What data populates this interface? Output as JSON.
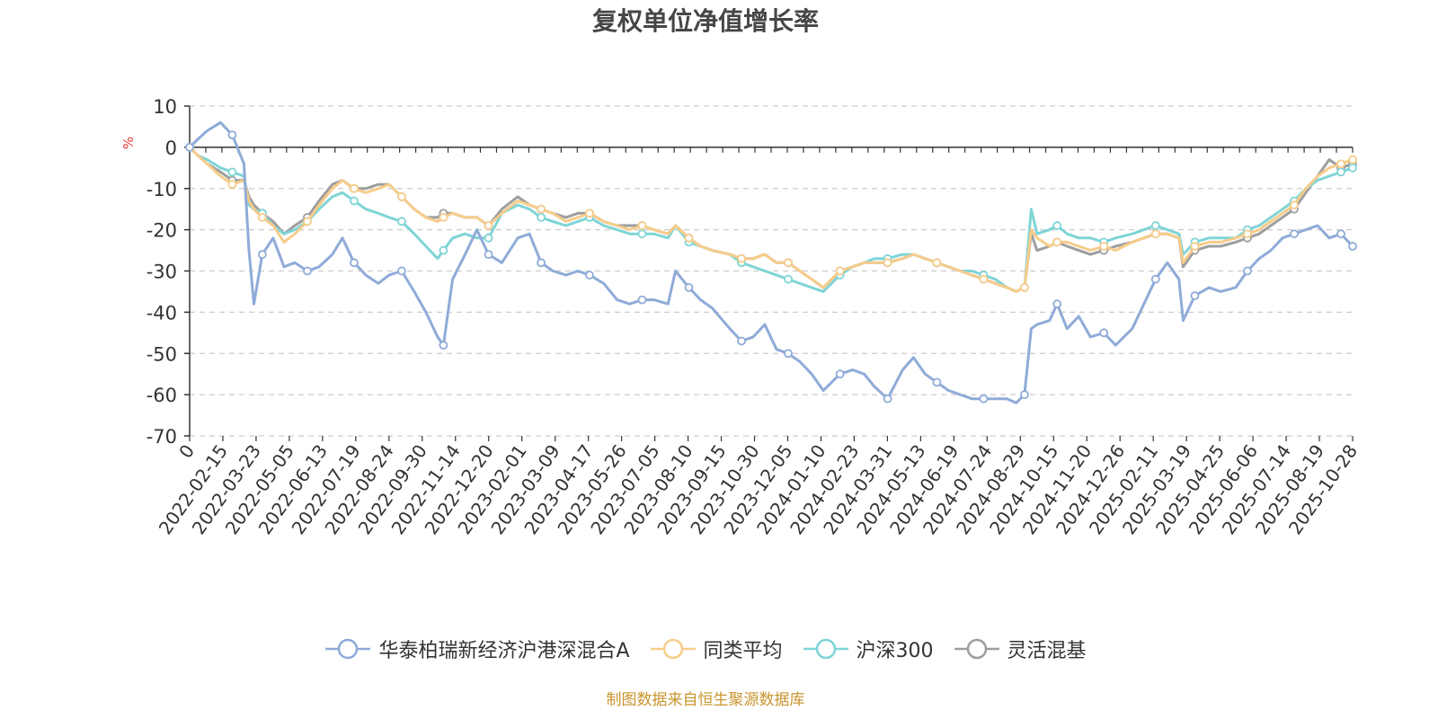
{
  "chart_data": {
    "type": "line",
    "title": "复权单位净值增长率",
    "ylabel": "%",
    "ylim": [
      -70,
      10
    ],
    "yticks": [
      10,
      0,
      -10,
      -20,
      -30,
      -40,
      -50,
      -60,
      -70
    ],
    "grid": true,
    "legend_position": "bottom-center",
    "source_note": "制图数据来自恒生聚源数据库",
    "x_tick_labels": [
      "0",
      "2022-02-15",
      "2022-03-23",
      "2022-05-05",
      "2022-06-13",
      "2022-07-19",
      "2022-08-24",
      "2022-09-30",
      "2022-11-14",
      "2022-12-20",
      "2023-02-01",
      "2023-03-09",
      "2023-04-17",
      "2023-05-26",
      "2023-07-05",
      "2023-08-10",
      "2023-09-15",
      "2023-10-30",
      "2023-12-05",
      "2024-01-10",
      "2024-02-23",
      "2024-03-31",
      "2024-05-13",
      "2024-06-19",
      "2024-07-24",
      "2024-08-29",
      "2024-10-15",
      "2024-11-20",
      "2024-12-26",
      "2025-02-11",
      "2025-03-19",
      "2025-04-25",
      "2025-06-06",
      "2025-07-14",
      "2025-08-19",
      "2025-10-28"
    ],
    "x": [
      "2022-01-04",
      "2022-01-14",
      "2022-01-25",
      "2022-02-10",
      "2022-02-24",
      "2022-03-10",
      "2022-03-16",
      "2022-03-22",
      "2022-04-01",
      "2022-04-14",
      "2022-04-27",
      "2022-05-10",
      "2022-05-25",
      "2022-06-08",
      "2022-06-24",
      "2022-07-06",
      "2022-07-20",
      "2022-08-03",
      "2022-08-18",
      "2022-08-31",
      "2022-09-15",
      "2022-09-30",
      "2022-10-14",
      "2022-10-28",
      "2022-11-04",
      "2022-11-15",
      "2022-11-30",
      "2022-12-14",
      "2022-12-28",
      "2023-01-13",
      "2023-02-01",
      "2023-02-15",
      "2023-03-01",
      "2023-03-15",
      "2023-03-31",
      "2023-04-14",
      "2023-04-28",
      "2023-05-15",
      "2023-05-31",
      "2023-06-15",
      "2023-06-30",
      "2023-07-14",
      "2023-07-31",
      "2023-08-09",
      "2023-08-25",
      "2023-09-08",
      "2023-09-22",
      "2023-10-13",
      "2023-10-27",
      "2023-11-10",
      "2023-11-24",
      "2023-12-08",
      "2023-12-22",
      "2024-01-05",
      "2024-01-19",
      "2024-02-02",
      "2024-02-22",
      "2024-03-08",
      "2024-03-22",
      "2024-04-03",
      "2024-04-19",
      "2024-05-07",
      "2024-05-20",
      "2024-06-03",
      "2024-06-17",
      "2024-07-01",
      "2024-07-15",
      "2024-07-29",
      "2024-08-12",
      "2024-08-26",
      "2024-09-09",
      "2024-09-20",
      "2024-09-30",
      "2024-10-08",
      "2024-10-15",
      "2024-10-30",
      "2024-11-08",
      "2024-11-20",
      "2024-12-04",
      "2024-12-18",
      "2025-01-03",
      "2025-01-17",
      "2025-02-06",
      "2025-02-20",
      "2025-03-06",
      "2025-03-20",
      "2025-04-03",
      "2025-04-08",
      "2025-04-22",
      "2025-05-09",
      "2025-05-23",
      "2025-06-10",
      "2025-06-24",
      "2025-07-08",
      "2025-07-22",
      "2025-08-05",
      "2025-08-19",
      "2025-09-02",
      "2025-09-16",
      "2025-09-30",
      "2025-10-14",
      "2025-10-28"
    ],
    "series": [
      {
        "name": "华泰柏瑞新经济沪港深混合A",
        "color": "#8fabd8",
        "values": [
          0,
          2,
          4,
          6,
          3,
          -4,
          -25,
          -38,
          -26,
          -22,
          -29,
          -28,
          -30,
          -29,
          -26,
          -22,
          -28,
          -31,
          -33,
          -31,
          -30,
          -35,
          -40,
          -46,
          -48,
          -32,
          -26,
          -20,
          -26,
          -28,
          -22,
          -21,
          -28,
          -30,
          -31,
          -30,
          -31,
          -33,
          -37,
          -38,
          -37,
          -37,
          -38,
          -30,
          -34,
          -37,
          -39,
          -44,
          -47,
          -46,
          -43,
          -49,
          -50,
          -52,
          -55,
          -59,
          -55,
          -54,
          -55,
          -58,
          -61,
          -54,
          -51,
          -55,
          -57,
          -59,
          -60,
          -61,
          -61,
          -61,
          -61,
          -62,
          -60,
          -44,
          -43,
          -42,
          -38,
          -44,
          -41,
          -46,
          -45,
          -48,
          -44,
          -38,
          -32,
          -28,
          -32,
          -42,
          -36,
          -34,
          -35,
          -34,
          -30,
          -27,
          -25,
          -22,
          -21,
          -20,
          -19,
          -22,
          -21,
          -24
        ]
      },
      {
        "name": "同类平均",
        "color": "#f7cc8a",
        "values": [
          0,
          -2,
          -4,
          -7,
          -9,
          -8,
          -13,
          -15,
          -17,
          -19,
          -23,
          -21,
          -18,
          -14,
          -10,
          -8,
          -10,
          -11,
          -10,
          -9,
          -12,
          -15,
          -17,
          -18,
          -17,
          -16,
          -17,
          -17,
          -19,
          -16,
          -13,
          -14,
          -15,
          -16,
          -18,
          -17,
          -16,
          -18,
          -19,
          -20,
          -19,
          -20,
          -21,
          -19,
          -22,
          -24,
          -25,
          -26,
          -27,
          -27,
          -26,
          -28,
          -28,
          -30,
          -32,
          -34,
          -30,
          -29,
          -28,
          -28,
          -28,
          -27,
          -26,
          -27,
          -28,
          -29,
          -30,
          -31,
          -32,
          -33,
          -34,
          -35,
          -34,
          -20,
          -22,
          -24,
          -23,
          -23,
          -24,
          -25,
          -24,
          -25,
          -23,
          -22,
          -21,
          -21,
          -22,
          -28,
          -24,
          -23,
          -23,
          -22,
          -21,
          -20,
          -18,
          -16,
          -14,
          -10,
          -7,
          -5,
          -4,
          -3
        ]
      },
      {
        "name": "沪深300",
        "color": "#7fd4d6",
        "values": [
          0,
          -2,
          -3,
          -5,
          -6,
          -7,
          -14,
          -15,
          -16,
          -19,
          -21,
          -20,
          -18,
          -15,
          -12,
          -11,
          -13,
          -15,
          -16,
          -17,
          -18,
          -21,
          -24,
          -27,
          -25,
          -22,
          -21,
          -22,
          -22,
          -16,
          -14,
          -15,
          -17,
          -18,
          -19,
          -18,
          -17,
          -19,
          -20,
          -21,
          -21,
          -21,
          -22,
          -19,
          -23,
          -24,
          -25,
          -26,
          -28,
          -29,
          -30,
          -31,
          -32,
          -33,
          -34,
          -35,
          -31,
          -29,
          -28,
          -27,
          -27,
          -26,
          -26,
          -27,
          -28,
          -29,
          -30,
          -30,
          -31,
          -32,
          -34,
          -35,
          -34,
          -15,
          -21,
          -20,
          -19,
          -21,
          -22,
          -22,
          -23,
          -22,
          -21,
          -20,
          -19,
          -20,
          -21,
          -26,
          -23,
          -22,
          -22,
          -22,
          -20,
          -19,
          -17,
          -15,
          -13,
          -10,
          -8,
          -7,
          -6,
          -5
        ]
      },
      {
        "name": "灵活混基",
        "color": "#9e9e9e",
        "values": [
          0,
          -2,
          -4,
          -6,
          -8,
          -8,
          -12,
          -14,
          -16,
          -18,
          -21,
          -19,
          -17,
          -13,
          -9,
          -8,
          -10,
          -10,
          -9,
          -9,
          -12,
          -15,
          -17,
          -17,
          -16,
          -16,
          -17,
          -17,
          -19,
          -15,
          -12,
          -14,
          -15,
          -16,
          -17,
          -16,
          -16,
          -18,
          -19,
          -19,
          -19,
          -20,
          -21,
          -19,
          -22,
          -24,
          -25,
          -26,
          -27,
          -27,
          -26,
          -28,
          -28,
          -30,
          -32,
          -34,
          -30,
          -29,
          -28,
          -28,
          -28,
          -27,
          -26,
          -27,
          -28,
          -29,
          -30,
          -31,
          -32,
          -33,
          -34,
          -35,
          -34,
          -21,
          -25,
          -24,
          -23,
          -24,
          -25,
          -26,
          -25,
          -24,
          -23,
          -22,
          -21,
          -21,
          -22,
          -29,
          -25,
          -24,
          -24,
          -23,
          -22,
          -21,
          -19,
          -17,
          -15,
          -11,
          -7,
          -3,
          -5,
          -4
        ]
      }
    ]
  }
}
